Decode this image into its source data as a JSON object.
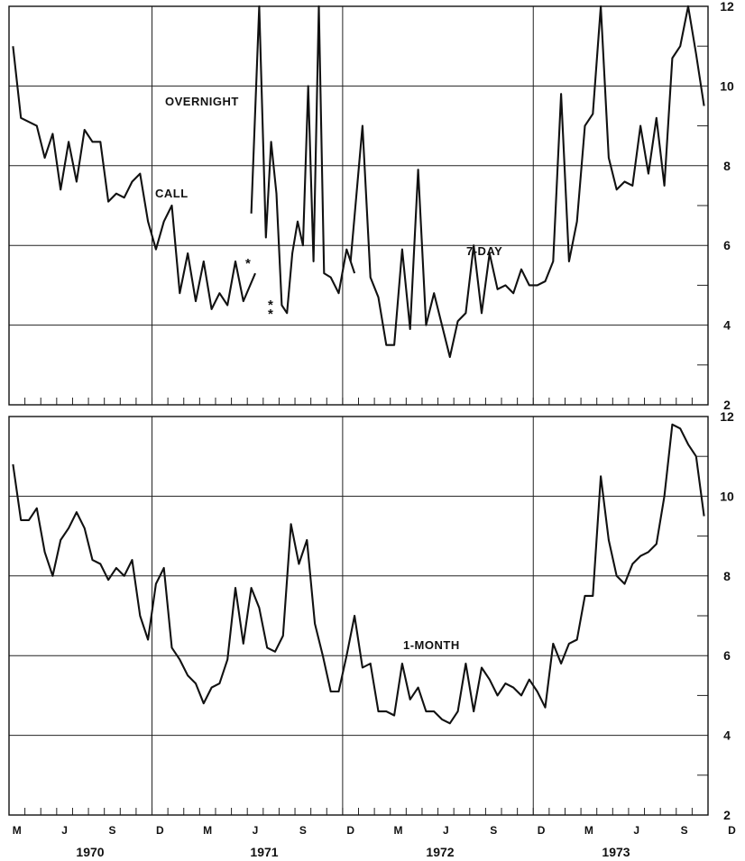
{
  "chart_data": [
    {
      "type": "line",
      "panel": "top",
      "ylim": [
        2,
        12
      ],
      "y_ticks": [
        "2",
        "4",
        "6",
        "8",
        "10",
        "12"
      ],
      "grid": "horizontal at each 2 and vertical at each December",
      "series": [
        {
          "name": "CALL",
          "x": [
            "1970-03",
            "1970-03",
            "1970-04",
            "1970-04",
            "1970-05",
            "1970-05",
            "1970-06",
            "1970-06",
            "1970-07",
            "1970-07",
            "1970-08",
            "1970-08",
            "1970-09",
            "1970-09",
            "1970-10",
            "1970-10",
            "1970-11",
            "1970-11",
            "1970-12",
            "1970-12",
            "1971-01",
            "1971-01",
            "1971-02",
            "1971-02",
            "1971-03",
            "1971-03",
            "1971-04",
            "1971-04",
            "1971-05",
            "1971-05",
            "1971-06"
          ],
          "y": [
            11.0,
            9.2,
            9.1,
            9.0,
            8.2,
            8.8,
            7.4,
            8.6,
            7.6,
            8.9,
            8.6,
            8.6,
            7.1,
            7.3,
            7.2,
            7.6,
            7.8,
            6.6,
            5.9,
            6.6,
            7.0,
            4.8,
            5.8,
            4.6,
            5.6,
            4.4,
            4.8,
            4.5,
            5.6,
            4.6,
            5.3
          ]
        },
        {
          "name": "OVERNIGHT",
          "x": [
            "1971-06",
            "1971-06",
            "1971-07",
            "1971-07",
            "1971-07",
            "1971-08",
            "1971-08",
            "1971-08",
            "1971-09",
            "1971-09",
            "1971-09",
            "1971-10",
            "1971-10",
            "1971-10",
            "1971-11",
            "1971-11",
            "1971-12",
            "1971-12"
          ],
          "y": [
            6.8,
            12.0,
            6.2,
            8.6,
            7.3,
            4.5,
            4.3,
            5.8,
            6.6,
            6.0,
            10.0,
            5.6,
            12.0,
            5.3,
            5.2,
            4.8,
            5.9,
            5.3
          ]
        },
        {
          "name": "7-DAY",
          "x": [
            "1971-12",
            "1972-01",
            "1972-01",
            "1972-02",
            "1972-02",
            "1972-03",
            "1972-03",
            "1972-04",
            "1972-04",
            "1972-05",
            "1972-05",
            "1972-06",
            "1972-06",
            "1972-07",
            "1972-07",
            "1972-08",
            "1972-08",
            "1972-09",
            "1972-09",
            "1972-10",
            "1972-10",
            "1972-11",
            "1972-11",
            "1972-12",
            "1972-12",
            "1973-01",
            "1973-01",
            "1973-02",
            "1973-02",
            "1973-03",
            "1973-03",
            "1973-04",
            "1973-04",
            "1973-05",
            "1973-05",
            "1973-06",
            "1973-06",
            "1973-07",
            "1973-07",
            "1973-08",
            "1973-08",
            "1973-09",
            "1973-09",
            "1973-10",
            "1973-10"
          ],
          "y": [
            5.6,
            9.0,
            5.2,
            4.7,
            3.5,
            3.5,
            5.9,
            3.9,
            7.9,
            4.0,
            4.8,
            4.0,
            3.2,
            4.1,
            4.3,
            6.0,
            4.3,
            5.8,
            4.9,
            5.0,
            4.8,
            5.4,
            5.0,
            5.0,
            5.1,
            5.6,
            9.8,
            5.6,
            6.6,
            9.0,
            9.3,
            12.0,
            8.2,
            7.4,
            7.6,
            7.5,
            9.0,
            7.8,
            9.2,
            7.5,
            10.7,
            11.0,
            12.0,
            10.8,
            9.5
          ]
        }
      ],
      "annotations": [
        "OVERNIGHT",
        "CALL",
        "7-DAY",
        "*",
        "*",
        "*"
      ]
    },
    {
      "type": "line",
      "panel": "bottom",
      "ylim": [
        2,
        12
      ],
      "y_ticks": [
        "2",
        "4",
        "6",
        "8",
        "10",
        "12"
      ],
      "grid": "horizontal at each 2 and vertical at each December",
      "series": [
        {
          "name": "1-MONTH",
          "x": [
            "1970-03",
            "1970-03",
            "1970-04",
            "1970-04",
            "1970-05",
            "1970-05",
            "1970-06",
            "1970-06",
            "1970-07",
            "1970-07",
            "1970-08",
            "1970-08",
            "1970-09",
            "1970-09",
            "1970-10",
            "1970-10",
            "1970-11",
            "1970-11",
            "1970-12",
            "1970-12",
            "1971-01",
            "1971-01",
            "1971-02",
            "1971-02",
            "1971-03",
            "1971-03",
            "1971-04",
            "1971-04",
            "1971-05",
            "1971-05",
            "1971-06",
            "1971-06",
            "1971-07",
            "1971-07",
            "1971-08",
            "1971-08",
            "1971-09",
            "1971-09",
            "1971-10",
            "1971-10",
            "1971-11",
            "1971-11",
            "1971-12",
            "1971-12",
            "1972-01",
            "1972-01",
            "1972-02",
            "1972-02",
            "1972-03",
            "1972-03",
            "1972-04",
            "1972-04",
            "1972-05",
            "1972-05",
            "1972-06",
            "1972-06",
            "1972-07",
            "1972-07",
            "1972-08",
            "1972-08",
            "1972-09",
            "1972-09",
            "1972-10",
            "1972-10",
            "1972-11",
            "1972-11",
            "1972-12",
            "1972-12",
            "1973-01",
            "1973-01",
            "1973-02",
            "1973-02",
            "1973-03",
            "1973-03",
            "1973-04",
            "1973-04",
            "1973-05",
            "1973-05",
            "1973-06",
            "1973-06",
            "1973-07",
            "1973-07",
            "1973-08",
            "1973-08",
            "1973-09",
            "1973-09",
            "1973-10",
            "1973-10"
          ],
          "y": [
            10.8,
            9.4,
            9.4,
            9.7,
            8.6,
            8.0,
            8.9,
            9.2,
            9.6,
            9.2,
            8.4,
            8.3,
            7.9,
            8.2,
            8.0,
            8.4,
            7.0,
            6.4,
            7.8,
            8.2,
            6.2,
            5.9,
            5.5,
            5.3,
            4.8,
            5.2,
            5.3,
            5.9,
            7.7,
            6.3,
            7.7,
            7.2,
            6.2,
            6.1,
            6.5,
            9.3,
            8.3,
            8.9,
            6.8,
            6.0,
            5.1,
            5.1,
            6.0,
            7.0,
            5.7,
            5.8,
            4.6,
            4.6,
            4.5,
            5.8,
            4.9,
            5.2,
            4.6,
            4.6,
            4.4,
            4.3,
            4.6,
            5.8,
            4.6,
            5.7,
            5.4,
            5.0,
            5.3,
            5.2,
            5.0,
            5.4,
            5.1,
            4.7,
            6.3,
            5.8,
            6.3,
            6.4,
            7.5,
            7.5,
            10.5,
            8.9,
            8.0,
            7.8,
            8.3,
            8.5,
            8.6,
            8.8,
            10.0,
            11.8,
            11.7,
            11.3,
            11.0,
            9.5
          ]
        }
      ],
      "annotations": [
        "1-MONTH"
      ]
    }
  ],
  "x_axis": {
    "months": [
      "M",
      "J",
      "S",
      "D",
      "M",
      "J",
      "S",
      "D",
      "M",
      "J",
      "S",
      "D",
      "M",
      "J",
      "S",
      "D"
    ],
    "years": [
      "1970",
      "1971",
      "1972",
      "1973"
    ]
  },
  "labels": {
    "overnight": "OVERNIGHT",
    "call": "CALL",
    "seven_day": "7-DAY",
    "one_month": "1-MONTH",
    "star": "*"
  },
  "colors": {
    "ink": "#111111",
    "paper": "#ffffff"
  }
}
